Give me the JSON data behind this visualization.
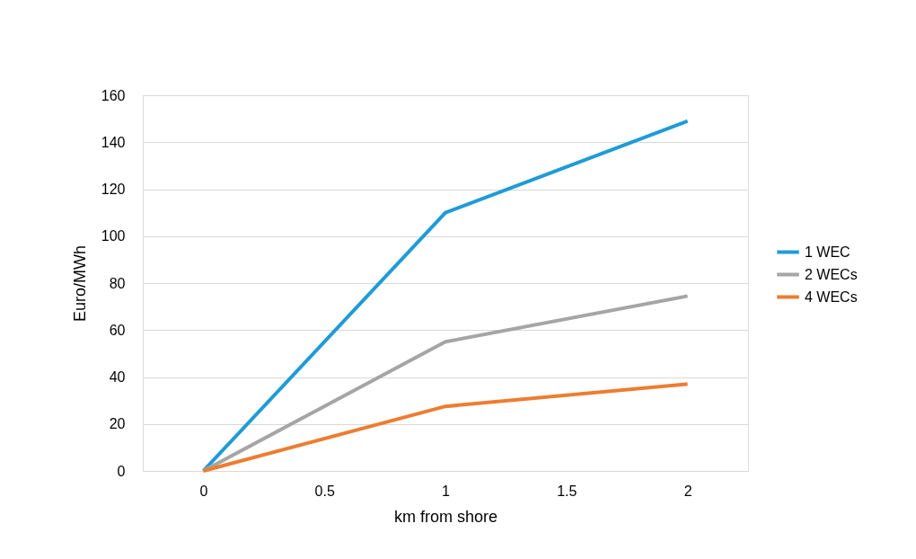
{
  "chart_data": {
    "type": "line",
    "xlabel": "km from shore",
    "ylabel": "Euro/MWh",
    "x": [
      0,
      1,
      2
    ],
    "series": [
      {
        "name": "1 WEC",
        "color": "#1f9bd7",
        "values": [
          0,
          110,
          149
        ]
      },
      {
        "name": "2 WECs",
        "color": "#a5a5a5",
        "values": [
          0,
          55,
          74.5
        ]
      },
      {
        "name": "4 WECs",
        "color": "#ed7d31",
        "values": [
          0,
          27.5,
          37
        ]
      }
    ],
    "xlim": [
      -0.25,
      2.25
    ],
    "xticks": [
      0,
      0.5,
      1,
      1.5,
      2
    ],
    "ylim": [
      0,
      160
    ],
    "yticks": [
      0,
      20,
      40,
      60,
      80,
      100,
      120,
      140,
      160
    ],
    "grid": "y",
    "legend": "right",
    "marker": "none",
    "line_style": "solid"
  }
}
